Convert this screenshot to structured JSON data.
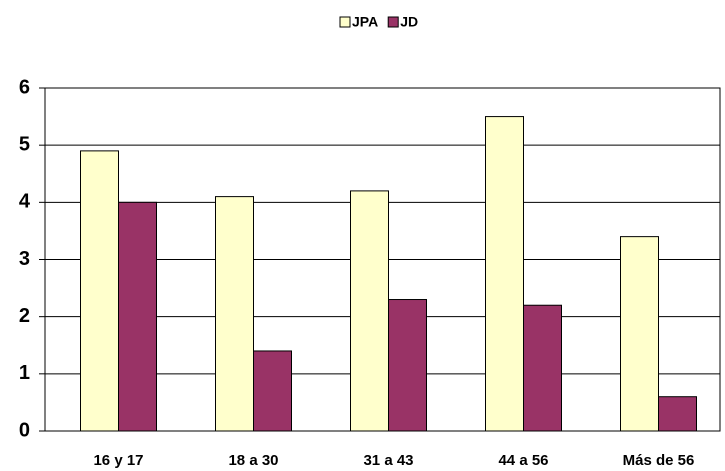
{
  "chart_data": {
    "type": "bar",
    "categories": [
      "16 y 17",
      "18 a 30",
      "31 a 43",
      "44 a 56",
      "Más de 56"
    ],
    "series": [
      {
        "name": "JPA",
        "color": "#ffffcc",
        "values": [
          4.9,
          4.1,
          4.2,
          5.5,
          3.4
        ]
      },
      {
        "name": "JD",
        "color": "#993366",
        "values": [
          4.0,
          1.4,
          2.3,
          2.2,
          0.6
        ]
      }
    ],
    "ylim": [
      0,
      6
    ],
    "yticks": [
      0,
      1,
      2,
      3,
      4,
      5,
      6
    ],
    "grid": true,
    "legend": "top"
  }
}
